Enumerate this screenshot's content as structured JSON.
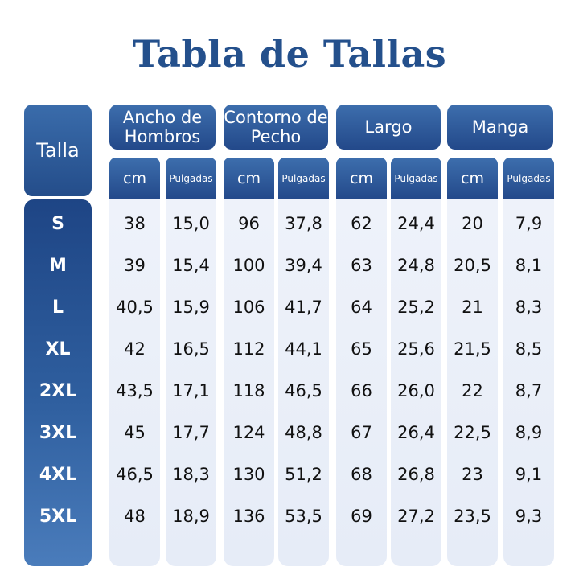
{
  "title": "Tabla de Tallas",
  "size_header": "Talla",
  "sizes": [
    "S",
    "M",
    "L",
    "XL",
    "2XL",
    "3XL",
    "4XL",
    "5XL"
  ],
  "groups": [
    {
      "label": "Ancho de Hombros",
      "unit_cm": "cm",
      "unit_in": "Pulgadas",
      "cm": [
        "38",
        "39",
        "40,5",
        "42",
        "43,5",
        "45",
        "46,5",
        "48"
      ],
      "in": [
        "15,0",
        "15,4",
        "15,9",
        "16,5",
        "17,1",
        "17,7",
        "18,3",
        "18,9"
      ]
    },
    {
      "label": "Contorno de Pecho",
      "unit_cm": "cm",
      "unit_in": "Pulgadas",
      "cm": [
        "96",
        "100",
        "106",
        "112",
        "118",
        "124",
        "130",
        "136"
      ],
      "in": [
        "37,8",
        "39,4",
        "41,7",
        "44,1",
        "46,5",
        "48,8",
        "51,2",
        "53,5"
      ]
    },
    {
      "label": "Largo",
      "unit_cm": "cm",
      "unit_in": "Pulgadas",
      "cm": [
        "62",
        "63",
        "64",
        "65",
        "66",
        "67",
        "68",
        "69"
      ],
      "in": [
        "24,4",
        "24,8",
        "25,2",
        "25,6",
        "26,0",
        "26,4",
        "26,8",
        "27,2"
      ]
    },
    {
      "label": "Manga",
      "unit_cm": "cm",
      "unit_in": "Pulgadas",
      "cm": [
        "20",
        "20,5",
        "21",
        "21,5",
        "22",
        "22,5",
        "23",
        "23,5"
      ],
      "in": [
        "7,9",
        "8,1",
        "8,3",
        "8,5",
        "8,7",
        "8,9",
        "9,1",
        "9,3"
      ]
    }
  ]
}
